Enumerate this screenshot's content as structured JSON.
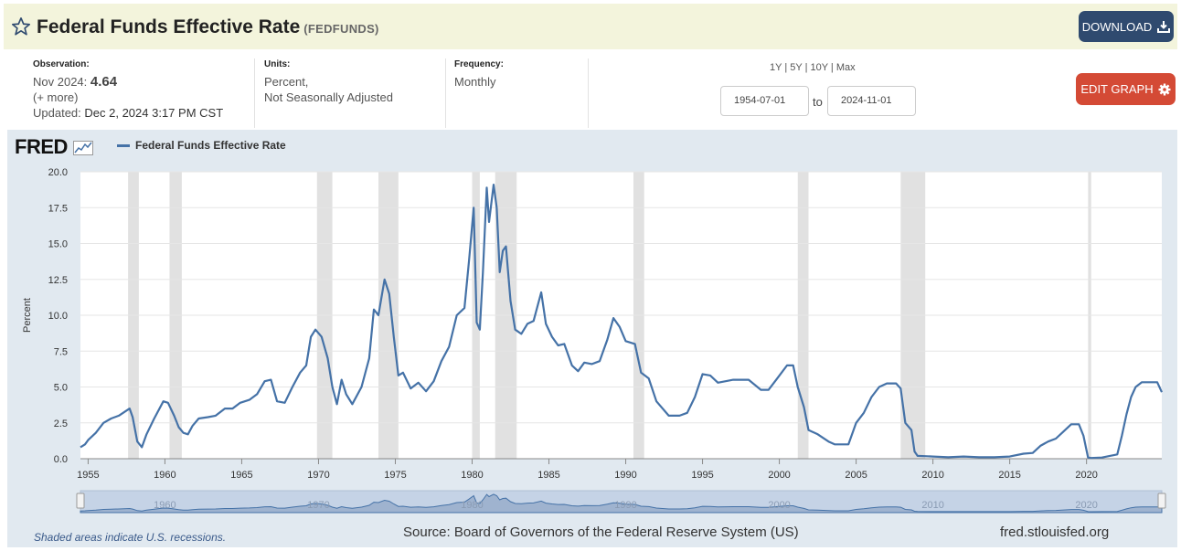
{
  "header": {
    "title": "Federal Funds Effective Rate",
    "series_code": "(FEDFUNDS)",
    "download_label": "DOWNLOAD"
  },
  "observation": {
    "label": "Observation:",
    "period": "Nov 2024:",
    "value": "4.64",
    "more": "(+ more)",
    "updated_label": "Updated:",
    "updated_value": "Dec 2, 2024 3:17 PM CST"
  },
  "units": {
    "label": "Units:",
    "line1": "Percent,",
    "line2": "Not Seasonally Adjusted"
  },
  "frequency": {
    "label": "Frequency:",
    "value": "Monthly"
  },
  "range": {
    "presets": [
      "1Y",
      "5Y",
      "10Y",
      "Max"
    ],
    "start": "1954-07-01",
    "to_label": "to",
    "end": "2024-11-01"
  },
  "edit_label": "EDIT GRAPH",
  "logo": "FRED",
  "footer": {
    "note": "Shaded areas indicate U.S. recessions.",
    "source": "Source: Board of Governors of the Federal Reserve System (US)",
    "site": "fred.stlouisfed.org"
  },
  "colors": {
    "line": "#4572a7",
    "recession": "#e1e1e1",
    "title_bar": "#f3f4dc",
    "download": "#2f4a6f",
    "edit": "#d44a35"
  },
  "chart_data": {
    "type": "line",
    "ylabel": "Percent",
    "xlim": [
      1954.5,
      2024.9
    ],
    "ylim": [
      0,
      20
    ],
    "grid": true,
    "x_ticks": [
      1955,
      1960,
      1965,
      1970,
      1975,
      1980,
      1985,
      1990,
      1995,
      2000,
      2005,
      2010,
      2015,
      2020
    ],
    "y_ticks": [
      "0.0",
      "2.5",
      "5.0",
      "7.5",
      "10.0",
      "12.5",
      "15.0",
      "17.5",
      "20.0"
    ],
    "navigator_ticks": [
      1960,
      1970,
      1980,
      1990,
      2000,
      2010,
      2020
    ],
    "legend_entry": "Federal Funds Effective Rate",
    "recessions": [
      [
        1957.6,
        1958.3
      ],
      [
        1960.3,
        1961.1
      ],
      [
        1969.9,
        1970.9
      ],
      [
        1973.9,
        1975.2
      ],
      [
        1980.0,
        1980.5
      ],
      [
        1981.5,
        1982.9
      ],
      [
        1990.5,
        1991.2
      ],
      [
        2001.2,
        2001.9
      ],
      [
        2007.9,
        2009.5
      ],
      [
        2020.1,
        2020.3
      ]
    ],
    "series": [
      {
        "x": [
          1954.5,
          1954.8,
          1955.0,
          1955.5,
          1956.0,
          1956.5,
          1957.0,
          1957.7,
          1957.9,
          1958.2,
          1958.5,
          1958.8,
          1959.3,
          1959.9,
          1960.2,
          1960.6,
          1960.9,
          1961.2,
          1961.5,
          1961.8,
          1962.2,
          1962.8,
          1963.3,
          1963.9,
          1964.4,
          1964.9,
          1965.5,
          1966.0,
          1966.5,
          1966.9,
          1967.3,
          1967.8,
          1968.3,
          1968.8,
          1969.2,
          1969.5,
          1969.8,
          1970.2,
          1970.6,
          1970.9,
          1971.2,
          1971.5,
          1971.8,
          1972.2,
          1972.8,
          1973.3,
          1973.6,
          1973.9,
          1974.3,
          1974.6,
          1974.9,
          1975.2,
          1975.5,
          1976.0,
          1976.5,
          1977.0,
          1977.5,
          1978.0,
          1978.5,
          1979.0,
          1979.5,
          1979.8,
          1980.1,
          1980.3,
          1980.5,
          1980.7,
          1980.95,
          1981.1,
          1981.4,
          1981.6,
          1981.8,
          1982.0,
          1982.2,
          1982.5,
          1982.8,
          1983.2,
          1983.6,
          1984.0,
          1984.5,
          1984.8,
          1985.2,
          1985.6,
          1986.0,
          1986.5,
          1986.9,
          1987.3,
          1987.8,
          1988.3,
          1988.8,
          1989.2,
          1989.6,
          1990.0,
          1990.6,
          1991.0,
          1991.5,
          1992.0,
          1992.8,
          1993.5,
          1994.0,
          1994.5,
          1995.0,
          1995.5,
          1996.0,
          1997.0,
          1998.0,
          1998.8,
          1999.3,
          1999.8,
          2000.5,
          2000.9,
          2001.2,
          2001.6,
          2001.9,
          2002.5,
          2003.2,
          2003.6,
          2004.5,
          2005.0,
          2005.5,
          2006.0,
          2006.5,
          2007.0,
          2007.6,
          2007.9,
          2008.2,
          2008.6,
          2008.8,
          2009.0,
          2010.0,
          2011.0,
          2012.0,
          2013.0,
          2014.0,
          2015.0,
          2015.9,
          2016.5,
          2017.0,
          2017.5,
          2018.0,
          2018.5,
          2019.0,
          2019.5,
          2019.8,
          2020.1,
          2020.3,
          2021.0,
          2022.0,
          2022.3,
          2022.6,
          2022.9,
          2023.2,
          2023.6,
          2024.0,
          2024.6,
          2024.9
        ],
        "y": [
          0.8,
          1.0,
          1.3,
          1.8,
          2.5,
          2.8,
          3.0,
          3.5,
          2.9,
          1.2,
          0.8,
          1.7,
          2.8,
          4.0,
          3.9,
          3.0,
          2.2,
          1.8,
          1.7,
          2.3,
          2.8,
          2.9,
          3.0,
          3.5,
          3.5,
          3.9,
          4.1,
          4.5,
          5.4,
          5.5,
          4.0,
          3.9,
          5.0,
          6.0,
          6.5,
          8.5,
          9.0,
          8.5,
          7.0,
          5.0,
          3.8,
          5.5,
          4.5,
          3.8,
          5.0,
          7.0,
          10.4,
          10.0,
          12.5,
          11.5,
          8.5,
          5.8,
          6.0,
          4.9,
          5.3,
          4.7,
          5.4,
          6.8,
          7.8,
          10.0,
          10.5,
          13.8,
          17.5,
          9.5,
          9.0,
          13.0,
          18.9,
          16.5,
          19.1,
          17.5,
          13.0,
          14.5,
          14.8,
          11.0,
          9.0,
          8.7,
          9.4,
          9.6,
          11.6,
          9.4,
          8.5,
          7.9,
          8.0,
          6.5,
          6.1,
          6.7,
          6.6,
          6.8,
          8.3,
          9.8,
          9.2,
          8.2,
          8.0,
          6.0,
          5.6,
          4.0,
          3.0,
          3.0,
          3.2,
          4.3,
          5.9,
          5.8,
          5.3,
          5.5,
          5.5,
          4.8,
          4.8,
          5.5,
          6.5,
          6.5,
          5.0,
          3.6,
          2.0,
          1.7,
          1.2,
          1.0,
          1.0,
          2.5,
          3.2,
          4.3,
          5.0,
          5.25,
          5.25,
          4.9,
          2.5,
          2.0,
          0.5,
          0.2,
          0.15,
          0.1,
          0.15,
          0.1,
          0.1,
          0.15,
          0.35,
          0.4,
          0.9,
          1.2,
          1.4,
          1.9,
          2.4,
          2.4,
          1.6,
          0.08,
          0.05,
          0.08,
          0.3,
          1.6,
          3.1,
          4.3,
          5.0,
          5.33,
          5.33,
          5.33,
          4.64
        ]
      }
    ]
  }
}
